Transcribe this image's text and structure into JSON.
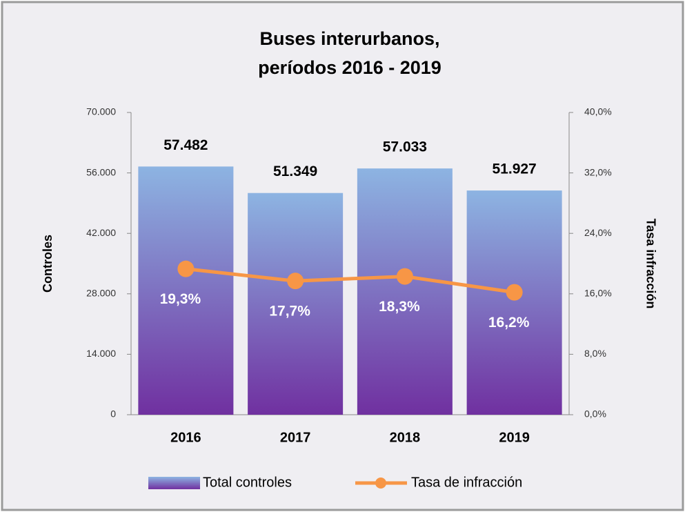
{
  "chart_data": {
    "type": "bar",
    "title": [
      "Buses interurbanos,",
      "períodos 2016 - 2019"
    ],
    "y_label": "Controles",
    "y2_label": "Tasa infracción",
    "categories": [
      "2016",
      "2017",
      "2018",
      "2019"
    ],
    "series": [
      {
        "name": "Total controles",
        "type": "bar",
        "color": [
          "#8db4e2",
          "#7030a0"
        ],
        "values": [
          57482,
          51349,
          57033,
          51927
        ],
        "value_labels": [
          "57.482",
          "51.349",
          "57.033",
          "51.927"
        ]
      },
      {
        "name": "Tasa de infracción",
        "type": "line",
        "axis": "y2",
        "color": "#f79646",
        "values": [
          19.3,
          17.7,
          18.3,
          16.2
        ],
        "value_labels": [
          "19,3%",
          "17,7%",
          "18,3%",
          "16,2%"
        ]
      }
    ],
    "ylim": [
      0,
      70000
    ],
    "yticks": [
      0,
      {
        "value": 14000,
        "label": "14.000"
      },
      {
        "value": 28000,
        "label": "28.000"
      },
      {
        "value": 42000,
        "label": "42.000"
      },
      {
        "value": 56000,
        "label": "56.000"
      },
      {
        "value": 70000,
        "label": "70.000"
      }
    ],
    "y2lim": [
      0,
      40
    ],
    "y2ticks": [
      {
        "value": 0,
        "label": "0,0%"
      },
      {
        "value": 8,
        "label": "8,0%"
      },
      {
        "value": 16,
        "label": "16,0%"
      },
      {
        "value": 24,
        "label": "24,0%"
      },
      {
        "value": 32,
        "label": "32,0%"
      },
      {
        "value": 40,
        "label": "40,0%"
      }
    ],
    "grid": false,
    "legend": "bottom"
  }
}
